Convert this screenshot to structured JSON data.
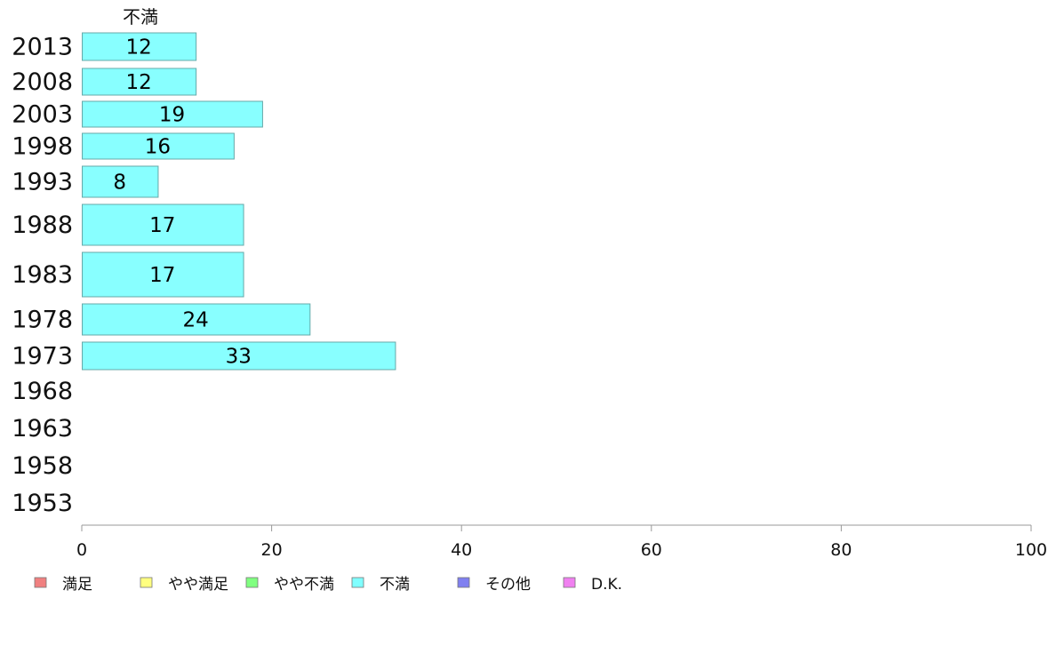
{
  "chart_data": {
    "type": "bar",
    "orientation": "horizontal",
    "column_title": "不満",
    "categories": [
      "2013",
      "2008",
      "2003",
      "1998",
      "1993",
      "1988",
      "1983",
      "1978",
      "1973",
      "1968",
      "1963",
      "1958",
      "1953"
    ],
    "series": [
      {
        "name": "不満",
        "values": [
          12,
          12,
          19,
          16,
          8,
          17,
          17,
          24,
          33,
          null,
          null,
          null,
          null
        ]
      }
    ],
    "value_labels": [
      "12",
      "12",
      "19",
      "16",
      "8",
      "17",
      "17",
      "24",
      "33",
      "",
      "",
      "",
      ""
    ],
    "xlim": [
      0,
      100
    ],
    "xticks": [
      "0",
      "20",
      "40",
      "60",
      "80",
      "100"
    ],
    "legend": {
      "placement": "bottom",
      "items": [
        {
          "label": "満足",
          "color": "#f08080"
        },
        {
          "label": "やや満足",
          "color": "#ffff80"
        },
        {
          "label": "やや不満",
          "color": "#80ff80"
        },
        {
          "label": "不満",
          "color": "#80ffff"
        },
        {
          "label": "その他",
          "color": "#8080f0"
        },
        {
          "label": "D.K.",
          "color": "#f080f0"
        }
      ]
    },
    "colors": {
      "bar_fill": "#88ffff",
      "bar_stroke": "#66a8a8",
      "axis": "#999999"
    },
    "grid": false
  }
}
